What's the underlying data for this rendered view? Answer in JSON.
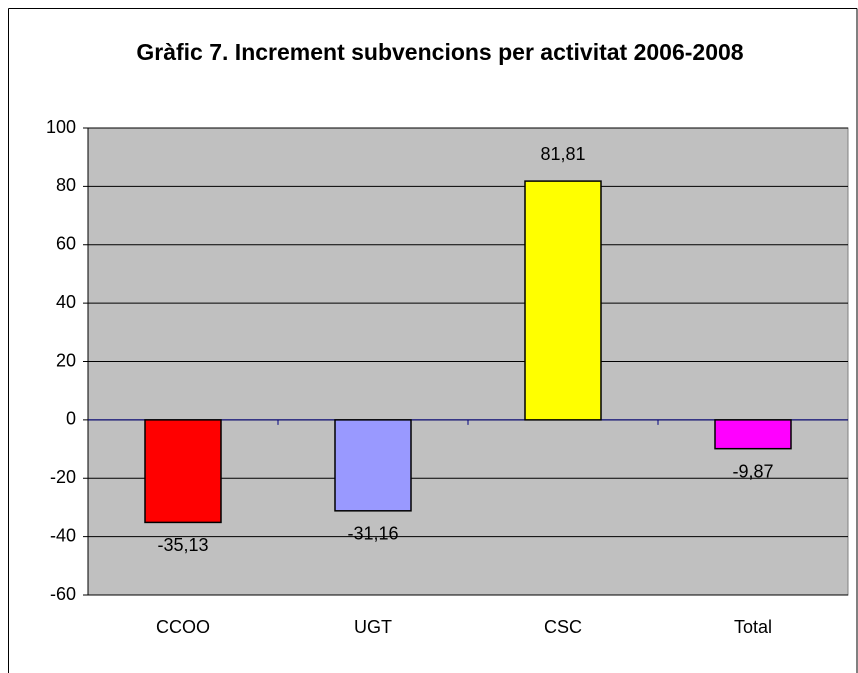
{
  "chart_data": {
    "type": "bar",
    "title": "Gràfic 7. Increment subvencions per activitat 2006-2008",
    "categories": [
      "CCOO",
      "UGT",
      "CSC",
      "Total"
    ],
    "values": [
      -35.13,
      -31.16,
      81.81,
      -9.87
    ],
    "value_labels": [
      "-35,13",
      "-31,16",
      "81,81",
      "-9,87"
    ],
    "colors": [
      "#ff0000",
      "#9999ff",
      "#ffff00",
      "#ff00ff"
    ],
    "ylim": [
      -60,
      100
    ],
    "yticks": [
      -60,
      -40,
      -20,
      0,
      20,
      40,
      60,
      80,
      100
    ],
    "grid": true
  }
}
